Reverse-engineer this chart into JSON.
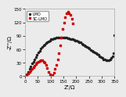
{
  "title": "",
  "xlabel": "Z'/Ω",
  "ylabel": "-Z''/Ω",
  "xlim": [
    0,
    350
  ],
  "ylim": [
    0,
    150
  ],
  "xticks": [
    0,
    50,
    100,
    150,
    200,
    250,
    300,
    350
  ],
  "yticks": [
    0,
    30,
    60,
    90,
    120,
    150
  ],
  "legend": [
    "LMO",
    "SC-LMO"
  ],
  "lmo_color": "#222222",
  "sclmo_color": "#cc0000",
  "background": "#ebebeb",
  "lmo_x": [
    3,
    7,
    12,
    17,
    22,
    27,
    32,
    37,
    42,
    47,
    52,
    57,
    62,
    67,
    72,
    77,
    82,
    87,
    92,
    97,
    102,
    107,
    112,
    117,
    122,
    127,
    132,
    137,
    142,
    147,
    152,
    157,
    162,
    167,
    172,
    177,
    182,
    187,
    192,
    197,
    202,
    207,
    212,
    217,
    222,
    227,
    232,
    237,
    242,
    247,
    252,
    257,
    262,
    267,
    272,
    277,
    282,
    287,
    292,
    297,
    302,
    307,
    312,
    317,
    322,
    327,
    332,
    337,
    342,
    347
  ],
  "lmo_y": [
    2,
    5,
    10,
    16,
    22,
    28,
    33,
    38,
    43,
    48,
    53,
    57,
    61,
    65,
    68,
    71,
    74,
    76,
    78,
    80,
    82,
    83,
    84,
    85,
    86,
    87,
    87,
    87,
    87,
    87,
    87,
    87,
    86,
    85,
    84,
    83,
    83,
    82,
    81,
    80,
    79,
    78,
    76,
    75,
    73,
    71,
    69,
    67,
    65,
    63,
    61,
    59,
    57,
    55,
    53,
    51,
    49,
    47,
    45,
    43,
    40,
    38,
    37,
    36,
    36,
    36,
    37,
    40,
    45,
    52
  ],
  "lmo_x2": [
    350
  ],
  "lmo_y2": [
    92
  ],
  "sclmo_x": [
    3,
    7,
    12,
    17,
    22,
    27,
    32,
    37,
    42,
    47,
    52,
    57,
    62,
    67,
    72,
    77,
    82,
    87,
    92,
    97,
    102,
    107,
    112,
    117,
    122,
    127,
    132,
    137,
    142,
    147,
    152,
    157,
    162,
    167,
    172,
    177,
    182,
    187
  ],
  "sclmo_y": [
    1,
    3,
    6,
    9,
    13,
    17,
    20,
    24,
    27,
    30,
    32,
    34,
    35,
    35,
    33,
    30,
    25,
    18,
    10,
    4,
    1,
    3,
    8,
    16,
    26,
    38,
    52,
    68,
    86,
    105,
    120,
    132,
    140,
    143,
    141,
    136,
    128,
    118
  ]
}
